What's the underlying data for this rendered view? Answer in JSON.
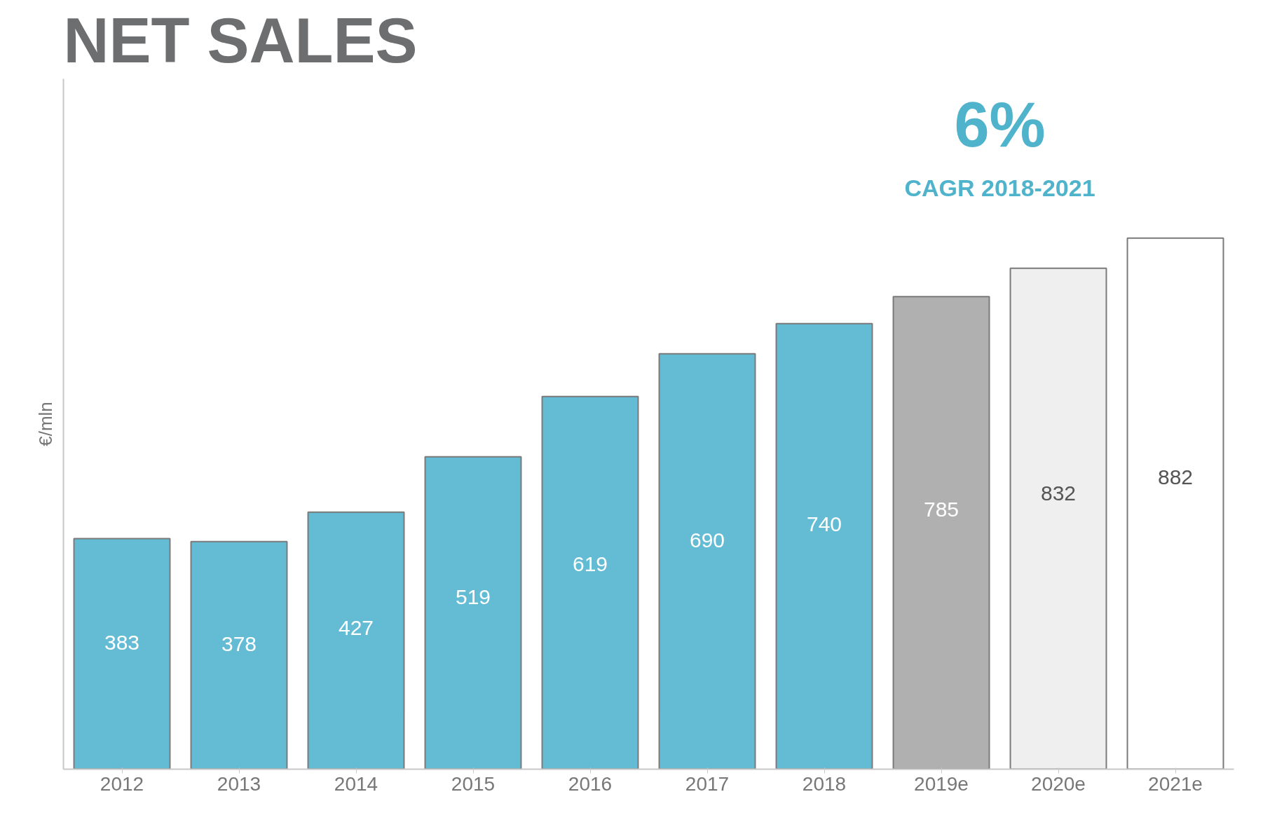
{
  "chart_data": {
    "type": "bar",
    "title": "NET SALES",
    "ylabel": "€/mln",
    "categories": [
      "2012",
      "2013",
      "2014",
      "2015",
      "2016",
      "2017",
      "2018",
      "2019e",
      "2020e",
      "2021e"
    ],
    "values": [
      383,
      378,
      427,
      519,
      619,
      690,
      740,
      785,
      832,
      882
    ],
    "colors": [
      "#63bcd4",
      "#63bcd4",
      "#63bcd4",
      "#63bcd4",
      "#63bcd4",
      "#63bcd4",
      "#63bcd4",
      "#b0b0b0",
      "#efefef",
      "#ffffff"
    ],
    "data_labels": true,
    "grid": false,
    "annotations": [
      "6%",
      "CAGR 2018-2021"
    ]
  }
}
